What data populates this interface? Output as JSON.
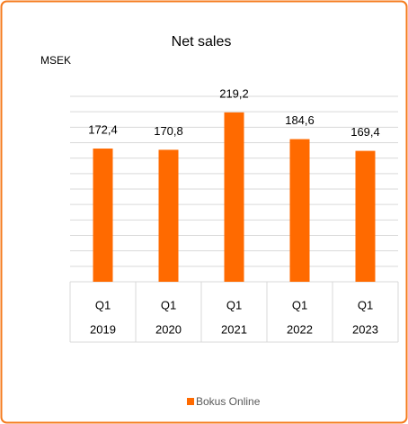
{
  "chart_data": {
    "type": "bar",
    "title": "Net sales",
    "y_axis_label": "MSEK",
    "categories": [
      "Q1",
      "Q1",
      "Q1",
      "Q1",
      "Q1"
    ],
    "category_groups": [
      "2019",
      "2020",
      "2021",
      "2022",
      "2023"
    ],
    "series": [
      {
        "name": "Bokus Online",
        "color": "#ff6a00",
        "values": [
          172.4,
          170.8,
          219.2,
          184.6,
          169.4
        ],
        "value_labels": [
          "172,4",
          "170,8",
          "219,2",
          "184,6",
          "169,4"
        ]
      }
    ],
    "ylim": [
      0,
      240
    ],
    "yticks": [
      0,
      20,
      40,
      60,
      80,
      100,
      120,
      140,
      160,
      180,
      200,
      220,
      240
    ],
    "grid": true,
    "legend": "bottom"
  }
}
